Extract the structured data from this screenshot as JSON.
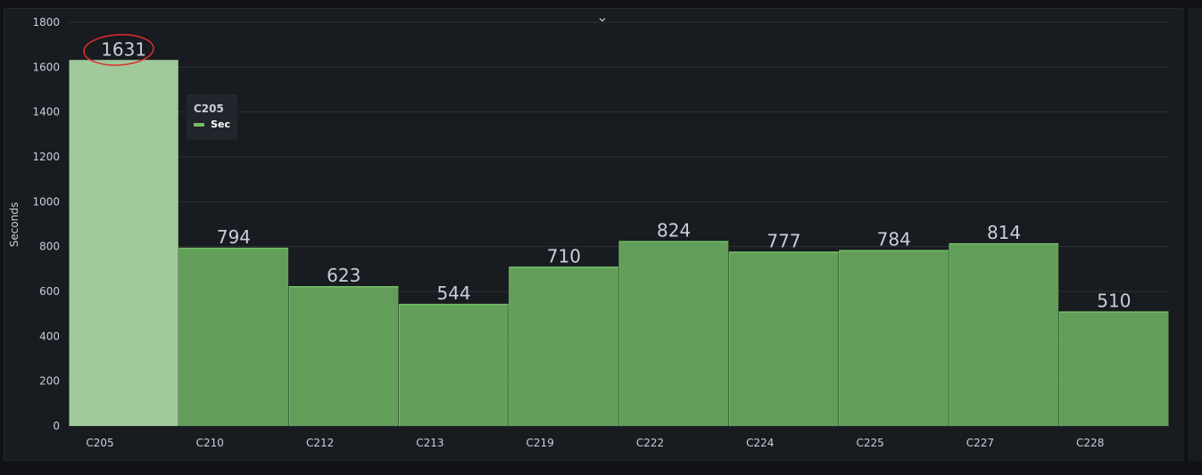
{
  "chart_data": {
    "type": "bar",
    "categories": [
      "C205",
      "C210",
      "C212",
      "C213",
      "C219",
      "C222",
      "C224",
      "C225",
      "C227",
      "C228"
    ],
    "series": [
      {
        "name": "Sec",
        "values": [
          1631,
          794,
          623,
          544,
          710,
          824,
          777,
          784,
          814,
          510
        ]
      }
    ],
    "data_labels": [
      "1631",
      "794",
      "623",
      "544",
      "710",
      "824",
      "777",
      "784",
      "814",
      "510"
    ],
    "ylabel": "Seconds",
    "ylim": [
      0,
      1800
    ],
    "yticks": [
      0,
      200,
      400,
      600,
      800,
      1000,
      1200,
      1400,
      1600,
      1800
    ],
    "ytick_labels": [
      "0",
      "200",
      "400",
      "600",
      "800",
      "1000",
      "1200",
      "1400",
      "1600",
      "1800"
    ],
    "grid": true,
    "highlighted_category": "C205",
    "colors": {
      "bar": "#629e59",
      "bar_highlight": "#a1c99b",
      "bar_edge": "#73bf69",
      "grid": "#2c2f35",
      "text": "#ccccdc",
      "annotation": "#e02f2f"
    }
  },
  "tooltip": {
    "title": "C205",
    "series_name": "Sec",
    "swatch_color": "#73bf69"
  }
}
